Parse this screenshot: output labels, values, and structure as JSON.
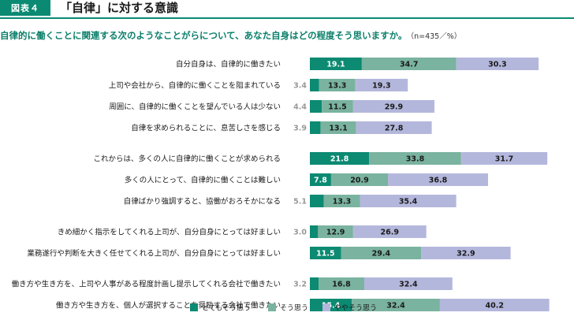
{
  "header": {
    "badge": "図表４",
    "title": "「自律」に対する意識",
    "question": "自律的に働くことに関連する次のようなことがらについて、あなた自身はどの程度そう思いますか。",
    "note": "（n=435／%）"
  },
  "colors": {
    "accent": "#0a8a72",
    "strongly_agree": "#0c8a72",
    "agree": "#7ab39f",
    "somewhat_agree": "#b4b7dc"
  },
  "chart_data": {
    "type": "bar",
    "orientation": "horizontal",
    "stacked": true,
    "categories": [
      "自分自身は、自律的に働きたい",
      "上司や会社から、自律的に働くことを阻まれている",
      "周囲に、自律的に働くことを望んでいる人は少ない",
      "自律を求められることに、息苦しさを感じる",
      "これからは、多くの人に自律的に働くことが求められる",
      "多くの人にとって、自律的に働くことは難しい",
      "自律ばかり強調すると、協働がおろそかになる",
      "きめ細かく指示をしてくれる上司が、自分自身にとっては好ましい",
      "業務遂行や判断を大きく任せてくれる上司が、自分自身にとっては好ましい",
      "働き方や生き方を、上司や人事がある程度計画し提示してくれる会社で働きたい",
      "働き方や生き方を、個人が選択することを奨励する会社で働きたい"
    ],
    "groups": [
      [
        0,
        1,
        2,
        3
      ],
      [
        4,
        5,
        6
      ],
      [
        7,
        8
      ],
      [
        9,
        10
      ]
    ],
    "series": [
      {
        "name": "とてもそう思う",
        "values": [
          19.1,
          3.4,
          4.4,
          3.9,
          21.8,
          7.8,
          5.1,
          3.0,
          11.5,
          3.2,
          15.4
        ]
      },
      {
        "name": "そう思う",
        "values": [
          34.7,
          13.3,
          11.5,
          13.1,
          33.8,
          20.9,
          13.3,
          12.9,
          29.4,
          16.8,
          32.4
        ]
      },
      {
        "name": "ややそう思う",
        "values": [
          30.3,
          19.3,
          29.9,
          27.8,
          31.7,
          36.8,
          35.4,
          26.9,
          32.9,
          32.4,
          40.2
        ]
      }
    ],
    "legend_position": "bottom"
  }
}
